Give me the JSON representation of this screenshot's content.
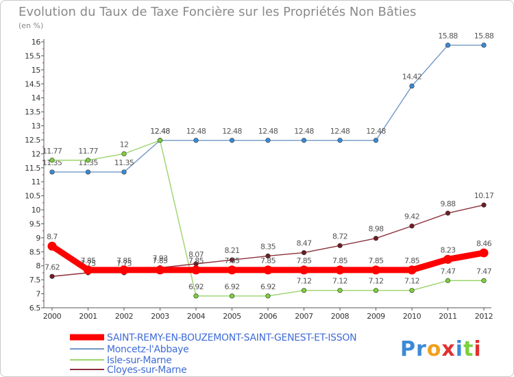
{
  "chart_data": {
    "type": "line",
    "title": "Evolution du Taux de Taxe Foncière sur les Propriétés Non Bâties",
    "unit_label": "(en %)",
    "x": [
      "2000",
      "2001",
      "2002",
      "2003",
      "2004",
      "2005",
      "2006",
      "2007",
      "2008",
      "2009",
      "2010",
      "2011",
      "2012"
    ],
    "y_ticks": [
      "6.5",
      "7",
      "7.5",
      "8",
      "8.5",
      "9",
      "9.5",
      "10",
      "10.5",
      "11",
      "11.5",
      "12",
      "12.5",
      "13",
      "13.5",
      "14",
      "14.5",
      "15",
      "15.5",
      "16"
    ],
    "ylim": [
      6.5,
      16
    ],
    "grid": false,
    "legend_position": "bottom-left",
    "series": [
      {
        "name": "SAINT-REMY-EN-BOUZEMONT-SAINT-GENEST-ET-ISSON",
        "color": "#ff0000",
        "marker_color": "#ff0000",
        "emphasis": "thick",
        "values": [
          8.7,
          7.85,
          7.85,
          7.85,
          7.85,
          7.85,
          7.85,
          7.85,
          7.85,
          7.85,
          7.85,
          8.23,
          8.46
        ],
        "labels": [
          "8.7",
          "7.85",
          "7.85",
          "7.85",
          "7.85",
          "7.85",
          "7.85",
          "7.85",
          "7.85",
          "7.85",
          "7.85",
          "8.23",
          "8.46"
        ]
      },
      {
        "name": "Moncetz-l'Abbaye",
        "color": "#6f97c4",
        "marker_color": "#3b8ad6",
        "emphasis": "thin",
        "values": [
          11.35,
          11.35,
          11.35,
          12.48,
          12.48,
          12.48,
          12.48,
          12.48,
          12.48,
          12.48,
          14.42,
          15.88,
          15.88
        ],
        "labels": [
          "11.35",
          "11.35",
          "11.35",
          "12.48",
          "12.48",
          "12.48",
          "12.48",
          "12.48",
          "12.48",
          "12.48",
          "14.42",
          "15.88",
          "15.88"
        ]
      },
      {
        "name": "Isle-sur-Marne",
        "color": "#9ad36a",
        "marker_color": "#7ccf3d",
        "emphasis": "thin",
        "values": [
          11.77,
          11.77,
          12,
          12.48,
          6.92,
          6.92,
          6.92,
          7.12,
          7.12,
          7.12,
          7.12,
          7.47,
          7.47
        ],
        "labels": [
          "11.77",
          "11.77",
          "12",
          "12.48",
          "6.92",
          "6.92",
          "6.92",
          "7.12",
          "7.12",
          "7.12",
          "7.12",
          "7.47",
          "7.47"
        ]
      },
      {
        "name": "Cloyes-sur-Marne",
        "color": "#8b2e3a",
        "marker_color": "#6e1d24",
        "emphasis": "thin",
        "values": [
          7.62,
          7.75,
          7.75,
          7.93,
          8.07,
          8.21,
          8.35,
          8.47,
          8.72,
          8.98,
          9.42,
          9.88,
          10.17
        ],
        "labels": [
          "7.62",
          "7.75",
          "7.75",
          "7.93",
          "8.07",
          "8.21",
          "8.35",
          "8.47",
          "8.72",
          "8.98",
          "9.42",
          "9.88",
          "10.17"
        ]
      }
    ]
  },
  "logo": {
    "letters": [
      "P",
      "r",
      "o",
      "x",
      "i",
      "t",
      "i"
    ],
    "colors": [
      "#3b8ad6",
      "#3b8ad6",
      "#f0a020",
      "#e03030",
      "#3b8ad6",
      "#7ccf3d",
      "#e03030"
    ]
  }
}
